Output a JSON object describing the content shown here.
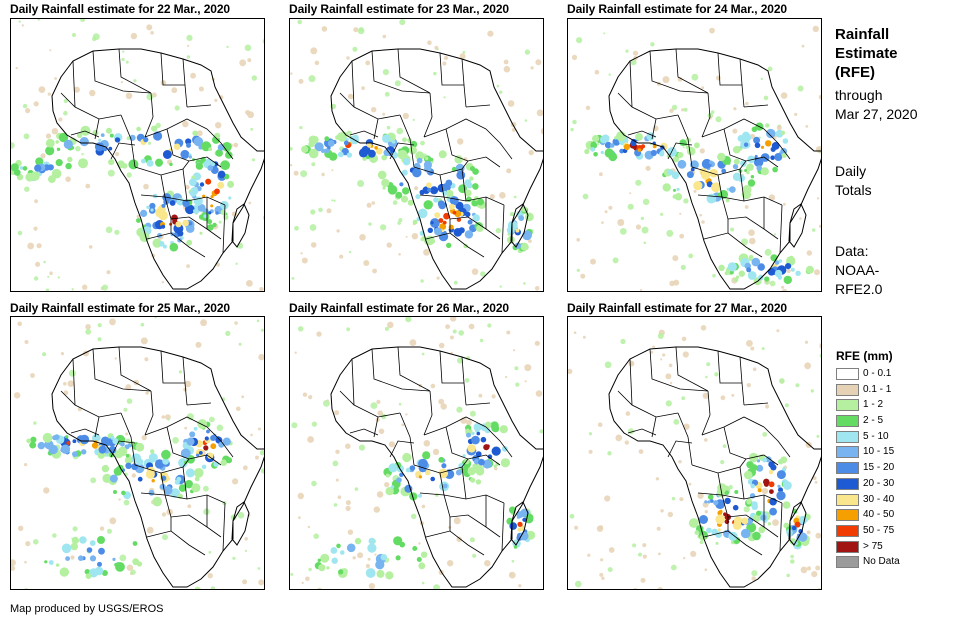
{
  "panels": [
    {
      "title": "Daily Rainfall estimate for 22 Mar., 2020",
      "rain_zones": [
        "tropical-africa",
        "southern-africa",
        "mozambique-channel",
        "west-coast-ocean"
      ]
    },
    {
      "title": "Daily Rainfall estimate for 23 Mar., 2020",
      "rain_zones": [
        "west-africa-coast",
        "central-africa",
        "southern-africa",
        "madagascar"
      ]
    },
    {
      "title": "Daily Rainfall estimate for 24 Mar., 2020",
      "rain_zones": [
        "west-africa-coast",
        "central-africa",
        "east-africa",
        "south-indian-ocean"
      ]
    },
    {
      "title": "Daily Rainfall estimate for 25 Mar., 2020",
      "rain_zones": [
        "west-africa-coast",
        "central-africa",
        "east-africa",
        "south-atlantic"
      ]
    },
    {
      "title": "Daily Rainfall estimate for 26 Mar., 2020",
      "rain_zones": [
        "central-africa",
        "east-africa",
        "madagascar",
        "south-atlantic"
      ]
    },
    {
      "title": "Daily Rainfall estimate for 27 Mar., 2020",
      "rain_zones": [
        "southern-africa",
        "mozambique-channel",
        "madagascar"
      ]
    }
  ],
  "sidebar": {
    "title_lines": [
      "Rainfall",
      "Estimate",
      "(RFE)"
    ],
    "through_lines": [
      "through",
      "Mar 27, 2020"
    ],
    "totals_lines": [
      "Daily",
      "Totals"
    ],
    "data_lines": [
      "Data:",
      "NOAA-",
      "RFE2.0"
    ]
  },
  "legend": {
    "title": "RFE (mm)",
    "items": [
      {
        "label": "0 - 0.1",
        "color": "#ffffff"
      },
      {
        "label": "0.1 - 1",
        "color": "#e6d2b4"
      },
      {
        "label": "1 - 2",
        "color": "#b4f0a0"
      },
      {
        "label": "2 - 5",
        "color": "#64dc64"
      },
      {
        "label": "5 - 10",
        "color": "#a0e6f0"
      },
      {
        "label": "10 - 15",
        "color": "#78b4f0"
      },
      {
        "label": "15 - 20",
        "color": "#4c8ce6"
      },
      {
        "label": "20 - 30",
        "color": "#1e5ad2"
      },
      {
        "label": "30 - 40",
        "color": "#fae68c"
      },
      {
        "label": "40 - 50",
        "color": "#f5a000"
      },
      {
        "label": "50 - 75",
        "color": "#f03c00"
      },
      {
        "label": "> 75",
        "color": "#a01414"
      },
      {
        "label": "No Data",
        "color": "#9b9b9b"
      }
    ]
  },
  "footer": "Map produced by USGS/EROS"
}
